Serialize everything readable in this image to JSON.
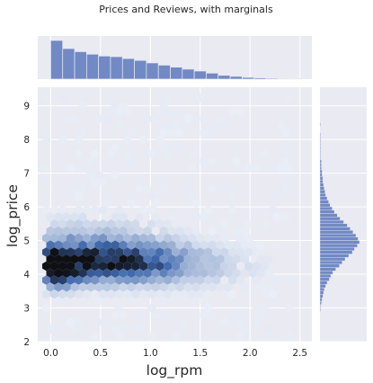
{
  "chart_data": {
    "type": "hexbin",
    "title": "Prices and Reviews, with marginals",
    "xlabel": "log_rpm",
    "ylabel": "log_price",
    "xlim": [
      -0.13,
      2.62
    ],
    "ylim": [
      2.0,
      9.55
    ],
    "xticks": [
      "0.0",
      "0.5",
      "1.0",
      "1.5",
      "2.0",
      "2.5"
    ],
    "xtick_values": [
      0,
      0.5,
      1.0,
      1.5,
      2.0,
      2.5
    ],
    "yticks": [
      "2",
      "3",
      "4",
      "5",
      "6",
      "7",
      "8",
      "9"
    ],
    "ytick_values": [
      2,
      3,
      4,
      5,
      6,
      7,
      8,
      9
    ],
    "grid": true,
    "background_color": "#eaeaf2",
    "colors": {
      "hex_dark": "#0f1016",
      "hex_mid": "#3e67ac",
      "hex_light": "#eef1f8",
      "hist": "#7189c4",
      "hist_edge": "#eaeaf2"
    },
    "marginal_x": {
      "bin_start": 0.0,
      "bin_width": 0.12,
      "counts": [
        310,
        245,
        220,
        200,
        185,
        180,
        165,
        150,
        130,
        112,
        96,
        80,
        65,
        48,
        30,
        22,
        14,
        10,
        7,
        4,
        3
      ]
    },
    "marginal_y": {
      "bin_start": 2.0,
      "bin_width": 0.1,
      "counts": [
        0,
        0,
        0,
        0,
        0,
        0,
        0,
        0,
        0,
        1,
        1,
        2,
        3,
        4,
        5,
        6,
        8,
        10,
        13,
        15,
        18,
        22,
        27,
        31,
        35,
        40,
        45,
        48,
        52,
        55,
        53,
        50,
        46,
        42,
        38,
        33,
        28,
        24,
        20,
        17,
        14,
        12,
        10,
        8,
        7,
        6,
        5,
        4,
        4,
        3,
        3,
        2,
        2,
        2,
        1,
        1,
        1,
        1,
        1,
        1,
        1,
        1,
        0,
        0,
        1,
        0,
        0,
        0,
        0,
        0,
        0,
        0,
        0,
        0
      ]
    },
    "hex_centers_note": "",
    "density_model": [
      {
        "cx": 0.08,
        "cy": 4.15,
        "sx": 0.12,
        "sy": 0.35,
        "w": 1.0
      },
      {
        "cx": 0.55,
        "cy": 4.35,
        "sx": 0.55,
        "sy": 0.38,
        "w": 0.75
      },
      {
        "cx": 0.35,
        "cy": 4.85,
        "sx": 0.55,
        "sy": 0.55,
        "w": 0.25
      },
      {
        "cx": 1.3,
        "cy": 4.2,
        "sx": 0.55,
        "sy": 0.45,
        "w": 0.12
      }
    ]
  }
}
